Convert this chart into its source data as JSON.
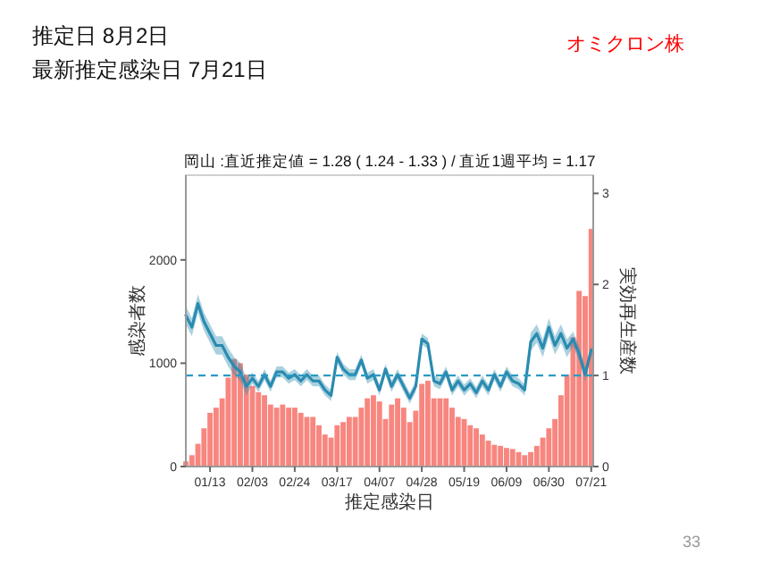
{
  "chart_data": {
    "type": "bar",
    "title": "岡山 :直近推定値 = 1.28 ( 1.24 - 1.33 ) / 直近1週平均 = 1.17",
    "xlabel": "推定感染日",
    "ylabel": "感染者数",
    "y2label": "実効再生産数",
    "annotations": [
      "推定日  8月2日",
      "最新推定感染日  7月21日",
      "オミクロン株",
      "33"
    ],
    "x": [
      "--01-01",
      "--01-04",
      "--01-07",
      "--01-10",
      "--01-13",
      "--01-16",
      "--01-19",
      "--01-22",
      "--01-25",
      "--01-28",
      "--01-31",
      "--02-03",
      "--02-06",
      "--02-09",
      "--02-12",
      "--02-15",
      "--02-18",
      "--02-21",
      "--02-24",
      "--02-27",
      "--03-02",
      "--03-05",
      "--03-08",
      "--03-11",
      "--03-14",
      "--03-17",
      "--03-20",
      "--03-23",
      "--03-26",
      "--03-29",
      "--04-01",
      "--04-04",
      "--04-07",
      "--04-10",
      "--04-13",
      "--04-16",
      "--04-19",
      "--04-22",
      "--04-25",
      "--04-28",
      "--05-01",
      "--05-04",
      "--05-07",
      "--05-10",
      "--05-13",
      "--05-16",
      "--05-19",
      "--05-22",
      "--05-25",
      "--05-28",
      "--05-31",
      "--06-03",
      "--06-06",
      "--06-09",
      "--06-12",
      "--06-15",
      "--06-18",
      "--06-21",
      "--06-24",
      "--06-27",
      "--06-30",
      "--07-03",
      "--07-06",
      "--07-09",
      "--07-12",
      "--07-15",
      "--07-18",
      "--07-21"
    ],
    "series": [
      {
        "color": "#f7867f",
        "values": [
          50,
          110,
          220,
          370,
          520,
          570,
          660,
          860,
          1040,
          1000,
          890,
          780,
          720,
          690,
          600,
          570,
          600,
          570,
          570,
          520,
          480,
          480,
          400,
          310,
          280,
          400,
          430,
          480,
          480,
          570,
          660,
          690,
          630,
          460,
          600,
          660,
          570,
          430,
          540,
          800,
          830,
          660,
          660,
          660,
          570,
          480,
          460,
          400,
          370,
          310,
          250,
          210,
          200,
          180,
          170,
          140,
          110,
          140,
          200,
          280,
          370,
          460,
          690,
          890,
          1250,
          1700,
          1650,
          2300
        ]
      },
      {
        "type": "line",
        "axis": "y2",
        "color": "#2a8bb0",
        "values": [
          1.66,
          1.53,
          1.79,
          1.59,
          1.46,
          1.33,
          1.33,
          1.2,
          1.1,
          1.04,
          0.88,
          0.97,
          0.88,
          1.01,
          0.88,
          1.04,
          1.04,
          0.97,
          1.01,
          0.94,
          1.01,
          0.94,
          0.94,
          0.84,
          0.78,
          1.2,
          1.07,
          1.01,
          1.01,
          1.17,
          0.97,
          1.01,
          0.84,
          1.07,
          0.88,
          1.01,
          0.88,
          0.75,
          0.88,
          1.4,
          1.35,
          0.94,
          0.91,
          1.04,
          0.84,
          0.94,
          0.84,
          0.91,
          0.81,
          0.94,
          0.84,
          1.01,
          0.88,
          1.04,
          0.94,
          0.91,
          0.84,
          1.37,
          1.46,
          1.3,
          1.53,
          1.33,
          1.46,
          1.3,
          1.4,
          1.24,
          1.01,
          1.28
        ],
        "lower": [
          1.56,
          1.43,
          1.69,
          1.49,
          1.36,
          1.23,
          1.23,
          1.1,
          1.0,
          0.94,
          0.78,
          0.91,
          0.82,
          0.95,
          0.82,
          0.98,
          0.98,
          0.91,
          0.95,
          0.88,
          0.95,
          0.88,
          0.88,
          0.78,
          0.72,
          1.14,
          1.01,
          0.95,
          0.95,
          1.11,
          0.91,
          0.95,
          0.78,
          1.01,
          0.82,
          0.95,
          0.82,
          0.69,
          0.82,
          1.34,
          1.29,
          0.88,
          0.85,
          0.98,
          0.78,
          0.88,
          0.78,
          0.85,
          0.75,
          0.88,
          0.78,
          0.95,
          0.82,
          0.98,
          0.88,
          0.85,
          0.78,
          1.27,
          1.36,
          1.2,
          1.43,
          1.23,
          1.36,
          1.2,
          1.32,
          1.16,
          0.93,
          1.24
        ],
        "upper": [
          1.76,
          1.63,
          1.89,
          1.69,
          1.56,
          1.43,
          1.43,
          1.3,
          1.2,
          1.14,
          0.98,
          1.03,
          0.94,
          1.07,
          0.94,
          1.1,
          1.1,
          1.03,
          1.07,
          1.0,
          1.07,
          1.0,
          1.0,
          0.9,
          0.84,
          1.26,
          1.13,
          1.07,
          1.07,
          1.23,
          1.03,
          1.07,
          0.9,
          1.13,
          0.94,
          1.07,
          0.94,
          0.81,
          0.94,
          1.46,
          1.41,
          1.0,
          0.97,
          1.1,
          0.9,
          1.0,
          0.9,
          0.97,
          0.87,
          1.0,
          0.9,
          1.07,
          0.94,
          1.1,
          1.0,
          0.97,
          0.9,
          1.47,
          1.56,
          1.4,
          1.63,
          1.43,
          1.56,
          1.4,
          1.48,
          1.32,
          1.09,
          1.33
        ]
      }
    ],
    "xlim": [
      "--01-01",
      "--07-22"
    ],
    "xticks": [
      {
        "value": "--01-13",
        "label": "01/13"
      },
      {
        "value": "--02-03",
        "label": "02/03"
      },
      {
        "value": "--02-24",
        "label": "02/24"
      },
      {
        "value": "--03-17",
        "label": "03/17"
      },
      {
        "value": "--04-07",
        "label": "04/07"
      },
      {
        "value": "--04-28",
        "label": "04/28"
      },
      {
        "value": "--05-19",
        "label": "05/19"
      },
      {
        "value": "--06-09",
        "label": "06/09"
      },
      {
        "value": "--06-30",
        "label": "06/30"
      },
      {
        "value": "--07-21",
        "label": "07/21"
      }
    ],
    "ylim": [
      0,
      2820
    ],
    "yticks": [
      0,
      1000,
      2000
    ],
    "y2lim": [
      0,
      3.2
    ],
    "y2ticks": [
      0,
      1,
      2,
      3
    ],
    "ref_lines": [
      {
        "axis": "y2",
        "value": 1,
        "color": "#2b9ac4",
        "line_style": "dashed"
      }
    ]
  }
}
